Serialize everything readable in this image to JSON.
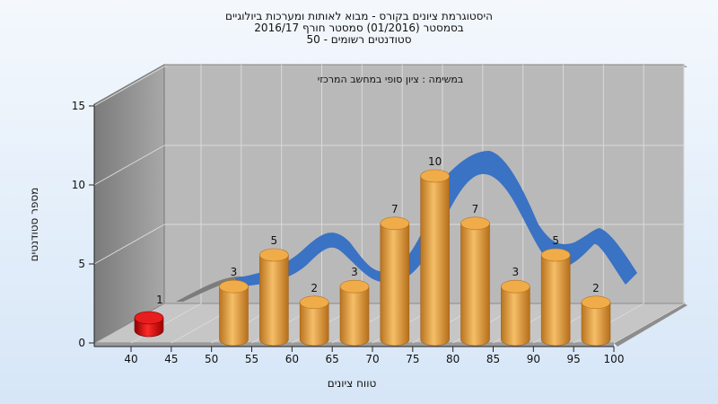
{
  "chart_data": {
    "type": "bar",
    "title": [
      "היסטוגרמת ציונים בקורס - מבוא לאותות ומערכות ביולוגיים",
      "בסמסטר  (01/2016)  סמסטר חורף 2016/17",
      "סטודנטים רשומים - 50"
    ],
    "subtitle": "במשימה : ציון סופי במחשב המרכזי",
    "xlabel": "טווח ציונים",
    "ylabel": "מספר סטודנטים",
    "x_ticks": [
      "40",
      "45",
      "50",
      "55",
      "60",
      "65",
      "70",
      "75",
      "80",
      "85",
      "90",
      "95",
      "100"
    ],
    "y_ticks": [
      "0",
      "5",
      "10",
      "15"
    ],
    "ylim": [
      0,
      15
    ],
    "grid": true,
    "categories": [
      "40",
      "55",
      "60",
      "65",
      "70",
      "75",
      "80",
      "85",
      "90",
      "95",
      "100"
    ],
    "values": [
      1,
      3,
      5,
      2,
      3,
      7,
      10,
      7,
      3,
      5,
      2
    ],
    "highlight_color": "#dd0d0d",
    "bar_color": "#eea43f",
    "curve_color": "#3a72c4"
  }
}
